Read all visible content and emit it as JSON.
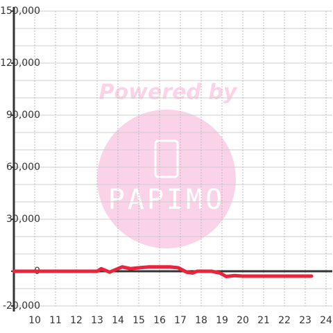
{
  "chart_data": {
    "type": "line",
    "x": [
      9,
      13,
      13.2,
      13.6,
      14.2,
      14.6,
      15,
      15.5,
      16.5,
      16.9,
      17.3,
      17.6,
      17.8,
      18.5,
      18.9,
      19.2,
      19.6,
      20,
      23.3
    ],
    "series": [
      {
        "color": "#e8253a",
        "values": [
          0,
          0,
          1500,
          -500,
          2500,
          1500,
          2000,
          2500,
          2500,
          2000,
          -500,
          -1000,
          0,
          0,
          -1000,
          -3000,
          -2500,
          -2800,
          -2800
        ]
      }
    ],
    "xlim": [
      9,
      24.3
    ],
    "xticks": [
      10,
      11,
      12,
      13,
      14,
      15,
      16,
      17,
      18,
      19,
      20,
      21,
      22,
      23,
      24
    ],
    "ylim": [
      -20000,
      150000
    ],
    "yticks": [
      {
        "value": -20000,
        "label": "-20,000"
      },
      {
        "value": 0,
        "label": "0"
      },
      {
        "value": 30000,
        "label": "30,000"
      },
      {
        "value": 60000,
        "label": "60,000"
      },
      {
        "value": 90000,
        "label": "90,000"
      },
      {
        "value": 120000,
        "label": "120,000"
      },
      {
        "value": 150000,
        "label": "150,000"
      }
    ],
    "yminor_ticks": [
      -10000,
      10000,
      20000,
      40000,
      50000,
      70000,
      80000,
      100000,
      110000,
      130000,
      140000
    ],
    "grid": true,
    "watermark": {
      "line1": "Powered by",
      "line2": "PAPIMO"
    }
  }
}
